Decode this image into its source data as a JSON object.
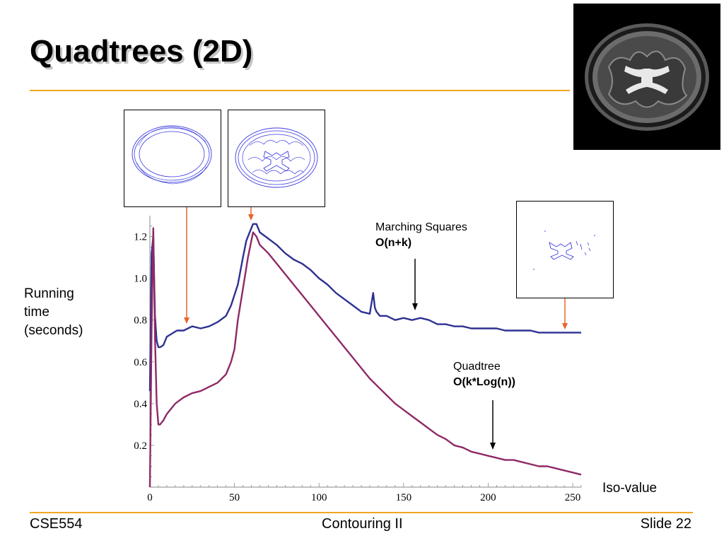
{
  "slide": {
    "title": "Quadtrees (2D)",
    "footer_left": "CSE554",
    "footer_center": "Contouring II",
    "footer_right": "Slide 22"
  },
  "colors": {
    "accent_rule": "#f0a81e",
    "marching_squares": "#2e3192",
    "quadtree": "#8e2a66",
    "marker_arrow": "#e8642c"
  },
  "annotations": {
    "marching_squares_name": "Marching Squares",
    "marching_squares_complexity": "O(n+k)",
    "quadtree_name": "Quadtree",
    "quadtree_complexity": "O(k*Log(n))"
  },
  "images": {
    "brain_mri": "brain-mri-slice",
    "contour_low": "contour-outline-iso-low",
    "contour_mid": "contour-outline-iso-mid",
    "contour_high": "contour-outline-iso-high"
  },
  "chart_data": {
    "type": "line",
    "title": "",
    "ylabel": "Running time (seconds)",
    "xlabel": "Iso-value",
    "xlim": [
      0,
      255
    ],
    "ylim": [
      0,
      1.3
    ],
    "x_ticks": [
      0,
      50,
      100,
      150,
      200,
      250
    ],
    "x_tick_labels": [
      "0",
      "50",
      "100",
      "150",
      "200",
      "250"
    ],
    "y_ticks": [
      0.2,
      0.4,
      0.6,
      0.8,
      1.0,
      1.2
    ],
    "y_tick_labels": [
      "0.2",
      "0.4",
      "0.6",
      "0.8",
      "1.0",
      "1.2"
    ],
    "grid": false,
    "marked_iso_values": [
      22,
      61,
      250
    ],
    "series": [
      {
        "name": "Marching Squares",
        "x": [
          0,
          1,
          2,
          3,
          4,
          5,
          6,
          8,
          10,
          12,
          14,
          16,
          20,
          25,
          30,
          35,
          40,
          45,
          48,
          50,
          52,
          55,
          57,
          59,
          61,
          63,
          65,
          70,
          75,
          80,
          85,
          90,
          95,
          100,
          105,
          110,
          115,
          120,
          125,
          130,
          132,
          133,
          134,
          136,
          140,
          145,
          150,
          155,
          160,
          165,
          170,
          175,
          180,
          185,
          190,
          195,
          200,
          205,
          210,
          215,
          220,
          225,
          230,
          235,
          240,
          245,
          250,
          255
        ],
        "y": [
          0.46,
          1.12,
          1.2,
          0.82,
          0.7,
          0.67,
          0.67,
          0.68,
          0.72,
          0.73,
          0.74,
          0.75,
          0.75,
          0.77,
          0.76,
          0.77,
          0.79,
          0.82,
          0.87,
          0.92,
          0.97,
          1.1,
          1.18,
          1.22,
          1.26,
          1.26,
          1.22,
          1.19,
          1.16,
          1.12,
          1.09,
          1.07,
          1.04,
          1.0,
          0.97,
          0.93,
          0.9,
          0.87,
          0.84,
          0.83,
          0.93,
          0.86,
          0.84,
          0.82,
          0.82,
          0.8,
          0.81,
          0.8,
          0.81,
          0.8,
          0.78,
          0.78,
          0.77,
          0.77,
          0.76,
          0.76,
          0.76,
          0.76,
          0.75,
          0.75,
          0.75,
          0.75,
          0.74,
          0.74,
          0.74,
          0.74,
          0.74,
          0.74
        ]
      },
      {
        "name": "Quadtree",
        "x": [
          0,
          1,
          2,
          3,
          4,
          5,
          6,
          8,
          10,
          12,
          15,
          20,
          25,
          30,
          35,
          40,
          45,
          48,
          50,
          52,
          55,
          58,
          61,
          63,
          65,
          70,
          75,
          80,
          85,
          90,
          95,
          100,
          105,
          110,
          115,
          120,
          125,
          130,
          135,
          140,
          145,
          150,
          155,
          160,
          165,
          170,
          175,
          180,
          185,
          190,
          195,
          200,
          205,
          210,
          215,
          220,
          225,
          230,
          235,
          240,
          245,
          250,
          255
        ],
        "y": [
          0.0,
          0.75,
          1.24,
          0.72,
          0.4,
          0.3,
          0.3,
          0.32,
          0.35,
          0.37,
          0.4,
          0.43,
          0.45,
          0.46,
          0.48,
          0.5,
          0.54,
          0.6,
          0.66,
          0.8,
          0.95,
          1.1,
          1.22,
          1.2,
          1.16,
          1.12,
          1.07,
          1.02,
          0.97,
          0.92,
          0.87,
          0.82,
          0.77,
          0.72,
          0.67,
          0.62,
          0.57,
          0.52,
          0.48,
          0.44,
          0.4,
          0.37,
          0.34,
          0.31,
          0.28,
          0.25,
          0.23,
          0.2,
          0.19,
          0.17,
          0.16,
          0.15,
          0.14,
          0.13,
          0.13,
          0.12,
          0.11,
          0.1,
          0.1,
          0.09,
          0.08,
          0.07,
          0.06
        ]
      }
    ]
  }
}
